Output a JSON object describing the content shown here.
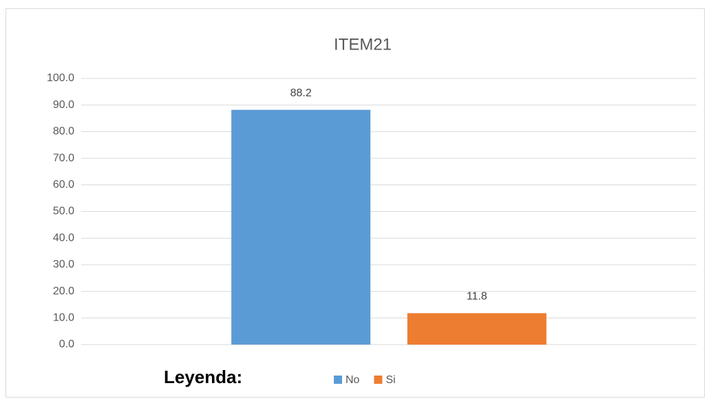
{
  "chart_data": {
    "type": "bar",
    "title": "ITEM21",
    "annotation": "Leyenda:",
    "categories": [
      null
    ],
    "series": [
      {
        "name": "No",
        "color": "#5b9bd5",
        "values": [
          88.2
        ]
      },
      {
        "name": "Si",
        "color": "#ed7d31",
        "values": [
          11.8
        ]
      }
    ],
    "ylim": [
      0,
      100
    ],
    "yticks": [
      {
        "value": 0,
        "label": "0.0"
      },
      {
        "value": 10,
        "label": "10.0"
      },
      {
        "value": 20,
        "label": "20.0"
      },
      {
        "value": 30,
        "label": "30.0"
      },
      {
        "value": 40,
        "label": "40.0"
      },
      {
        "value": 50,
        "label": "50.0"
      },
      {
        "value": 60,
        "label": "60.0"
      },
      {
        "value": 70,
        "label": "70.0"
      },
      {
        "value": 80,
        "label": "80.0"
      },
      {
        "value": 90,
        "label": "90.0"
      },
      {
        "value": 100,
        "label": "100.0"
      }
    ],
    "grid": true,
    "legend": "bottom"
  }
}
